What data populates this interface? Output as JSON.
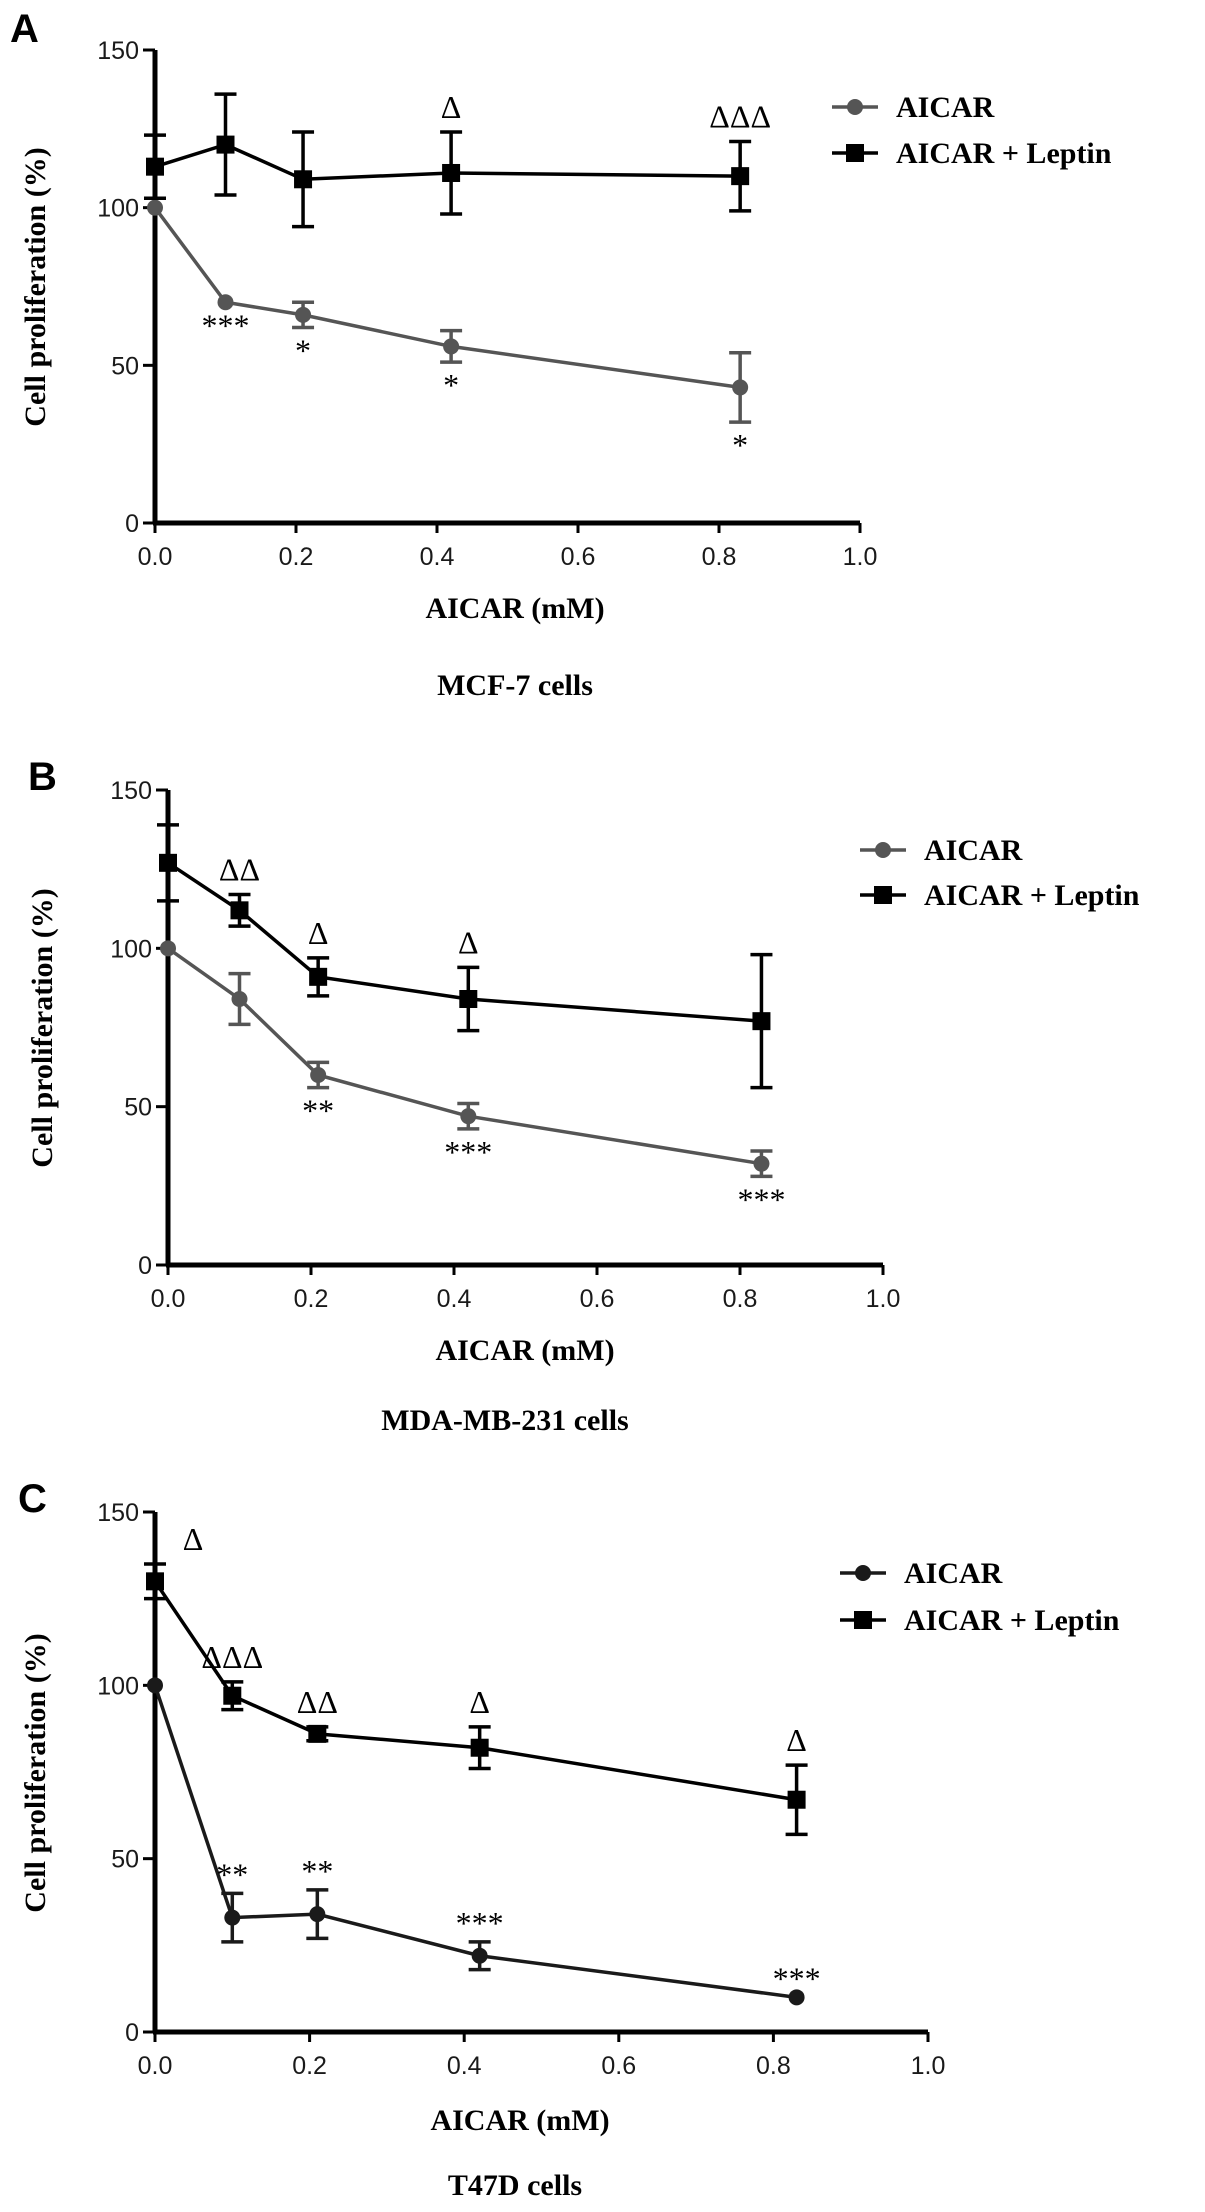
{
  "chart_data": [
    {
      "type": "line",
      "panel_label": "A",
      "caption": "MCF-7 cells",
      "xlabel": "AICAR  (mM)",
      "ylabel": "Cell proliferation (%)",
      "xlim": [
        0,
        1.0
      ],
      "ylim": [
        0,
        150
      ],
      "x_ticks": [
        "0.0",
        "0.2",
        "0.4",
        "0.6",
        "0.8",
        "1.0"
      ],
      "y_ticks": [
        "0",
        "50",
        "100",
        "150"
      ],
      "grid": false,
      "legend_position": "top-right",
      "series": [
        {
          "name": "AICAR",
          "marker": "circle",
          "color": "#555555",
          "x": [
            0,
            0.1,
            0.21,
            0.42,
            0.83
          ],
          "y": [
            100,
            70,
            66,
            56,
            43
          ],
          "err": [
            0,
            0,
            4,
            5,
            11
          ],
          "labels": [
            "",
            "***",
            "*",
            "*",
            "*"
          ]
        },
        {
          "name": "AICAR + Leptin",
          "marker": "square",
          "color": "#000000",
          "x": [
            0,
            0.1,
            0.21,
            0.42,
            0.83
          ],
          "y": [
            113,
            120,
            109,
            111,
            110
          ],
          "err": [
            10,
            16,
            15,
            13,
            11
          ],
          "labels": [
            "",
            "",
            "",
            "Δ",
            "ΔΔΔ"
          ]
        }
      ]
    },
    {
      "type": "line",
      "panel_label": "B",
      "caption": "MDA-MB-231 cells",
      "xlabel": "AICAR  (mM)",
      "ylabel": "Cell proliferation (%)",
      "xlim": [
        0,
        1.0
      ],
      "ylim": [
        0,
        150
      ],
      "x_ticks": [
        "0.0",
        "0.2",
        "0.4",
        "0.6",
        "0.8",
        "1.0"
      ],
      "y_ticks": [
        "0",
        "50",
        "100",
        "150"
      ],
      "grid": false,
      "legend_position": "top-right",
      "series": [
        {
          "name": "AICAR",
          "marker": "circle",
          "color": "#555555",
          "x": [
            0,
            0.1,
            0.21,
            0.42,
            0.83
          ],
          "y": [
            100,
            84,
            60,
            47,
            32
          ],
          "err": [
            0,
            8,
            4,
            4,
            4
          ],
          "labels": [
            "",
            "",
            "**",
            "***",
            "***"
          ]
        },
        {
          "name": "AICAR + Leptin",
          "marker": "square",
          "color": "#000000",
          "x": [
            0,
            0.1,
            0.21,
            0.42,
            0.83
          ],
          "y": [
            127,
            112,
            91,
            84,
            77
          ],
          "err": [
            12,
            5,
            6,
            10,
            21
          ],
          "labels": [
            "",
            "ΔΔ",
            "Δ",
            "Δ",
            ""
          ]
        }
      ]
    },
    {
      "type": "line",
      "panel_label": "C",
      "caption": "T47D cells",
      "xlabel": "AICAR  (mM)",
      "ylabel": "Cell proliferation (%)",
      "xlim": [
        0,
        1.0
      ],
      "ylim": [
        0,
        150
      ],
      "x_ticks": [
        "0.0",
        "0.2",
        "0.4",
        "0.6",
        "0.8",
        "1.0"
      ],
      "y_ticks": [
        "0",
        "50",
        "100",
        "150"
      ],
      "grid": false,
      "legend_position": "top-right",
      "series": [
        {
          "name": "AICAR",
          "marker": "circle",
          "color": "#1a1a1a",
          "x": [
            0,
            0.1,
            0.21,
            0.42,
            0.83
          ],
          "y": [
            100,
            33,
            34,
            22,
            10
          ],
          "err": [
            0,
            7,
            7,
            4,
            0
          ],
          "labels": [
            "",
            "**",
            "**",
            "***",
            "***"
          ]
        },
        {
          "name": "AICAR + Leptin",
          "marker": "square",
          "color": "#000000",
          "x": [
            0,
            0.1,
            0.21,
            0.42,
            0.83
          ],
          "y": [
            130,
            97,
            86,
            82,
            67
          ],
          "err": [
            5,
            4,
            2,
            6,
            10
          ],
          "labels": [
            "Δ",
            "ΔΔΔ",
            "ΔΔ",
            "Δ",
            "Δ"
          ]
        }
      ]
    }
  ]
}
